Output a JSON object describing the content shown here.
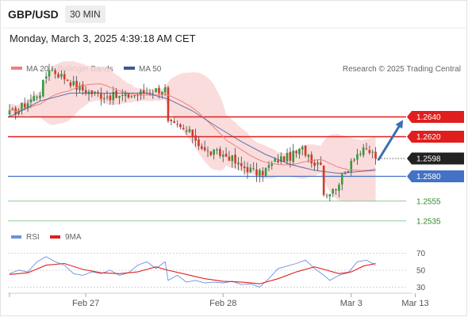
{
  "header": {
    "symbol": "GBP/USD",
    "interval": "30 MIN",
    "datetime": "Monday, March 3, 2025 4:39:18 AM CET"
  },
  "legend": {
    "items": [
      {
        "label": "MA 20 + Bollinger Bands",
        "color": "#f08080"
      },
      {
        "label": "MA 50",
        "color": "#3a5a9a"
      }
    ],
    "rsi_items": [
      {
        "label": "RSI",
        "color": "#6f8fdc"
      },
      {
        "label": "9MA",
        "color": "#e02020"
      }
    ]
  },
  "attribution": "Research © 2025 Trading Central",
  "colors": {
    "up_candle": "#2e9e3e",
    "down_candle": "#d43a2a",
    "resistance": "#e01e1e",
    "pivot": "#4472c4",
    "support": "#8fc98f",
    "current": "#222222",
    "bands": "#f9d6d6",
    "arrow": "#3a6fb0"
  },
  "chart_data": [
    {
      "type": "candlestick",
      "y_range": [
        1.2526,
        1.2678
      ],
      "x_range": [
        0,
        130
      ],
      "x_ticks": [
        {
          "label": "Feb 27",
          "x": 25
        },
        {
          "label": "Feb 28",
          "x": 70
        },
        {
          "label": "Mar 3",
          "x": 112
        },
        {
          "label": "Mar 13",
          "x": 133
        }
      ],
      "levels": [
        {
          "label": "1.2640",
          "value": 1.264,
          "kind": "resistance"
        },
        {
          "label": "1.2620",
          "value": 1.262,
          "kind": "resistance"
        },
        {
          "label": "1.2598",
          "value": 1.2598,
          "kind": "current"
        },
        {
          "label": "1.2580",
          "value": 1.258,
          "kind": "pivot"
        },
        {
          "label": "1.2555",
          "value": 1.2555,
          "kind": "support"
        },
        {
          "label": "1.2535",
          "value": 1.2535,
          "kind": "support"
        }
      ],
      "forecast_arrow": {
        "from": [
          121,
          1.2597
        ],
        "to": [
          129,
          1.2637
        ]
      },
      "anchors_close": [
        [
          0,
          1.2643
        ],
        [
          3,
          1.2648
        ],
        [
          6,
          1.2655
        ],
        [
          10,
          1.2665
        ],
        [
          13,
          1.269
        ],
        [
          16,
          1.2683
        ],
        [
          19,
          1.2678
        ],
        [
          22,
          1.267
        ],
        [
          26,
          1.2665
        ],
        [
          30,
          1.2662
        ],
        [
          36,
          1.266
        ],
        [
          42,
          1.2663
        ],
        [
          47,
          1.2667
        ],
        [
          51,
          1.2668
        ],
        [
          52,
          1.2633
        ],
        [
          56,
          1.2628
        ],
        [
          60,
          1.2622
        ],
        [
          64,
          1.2605
        ],
        [
          68,
          1.2603
        ],
        [
          72,
          1.26
        ],
        [
          75,
          1.2591
        ],
        [
          78,
          1.2588
        ],
        [
          82,
          1.2582
        ],
        [
          85,
          1.259
        ],
        [
          88,
          1.2597
        ],
        [
          92,
          1.26
        ],
        [
          96,
          1.2607
        ],
        [
          98,
          1.2602
        ],
        [
          100,
          1.2593
        ],
        [
          102,
          1.2596
        ],
        [
          103,
          1.2563
        ],
        [
          106,
          1.2565
        ],
        [
          108,
          1.2575
        ],
        [
          110,
          1.2582
        ],
        [
          112,
          1.2597
        ],
        [
          114,
          1.2603
        ],
        [
          117,
          1.2606
        ],
        [
          119,
          1.2603
        ],
        [
          120,
          1.26
        ]
      ],
      "ma50_points": [
        [
          0,
          1.264
        ],
        [
          10,
          1.2656
        ],
        [
          20,
          1.2664
        ],
        [
          30,
          1.2664
        ],
        [
          45,
          1.2664
        ],
        [
          52,
          1.2658
        ],
        [
          60,
          1.2646
        ],
        [
          68,
          1.263
        ],
        [
          76,
          1.2615
        ],
        [
          84,
          1.2602
        ],
        [
          92,
          1.2592
        ],
        [
          100,
          1.2586
        ],
        [
          108,
          1.2583
        ],
        [
          115,
          1.2585
        ],
        [
          120,
          1.2586
        ]
      ]
    },
    {
      "type": "line",
      "title": "RSI",
      "y_range": [
        20,
        80
      ],
      "y_ticks": [
        70,
        50,
        30
      ],
      "series": [
        {
          "name": "RSI",
          "points": [
            [
              0,
              46
            ],
            [
              3,
              50
            ],
            [
              6,
              48
            ],
            [
              9,
              60
            ],
            [
              12,
              66
            ],
            [
              15,
              60
            ],
            [
              18,
              56
            ],
            [
              21,
              46
            ],
            [
              24,
              44
            ],
            [
              27,
              48
            ],
            [
              30,
              46
            ],
            [
              33,
              50
            ],
            [
              36,
              44
            ],
            [
              39,
              47
            ],
            [
              42,
              56
            ],
            [
              45,
              60
            ],
            [
              48,
              52
            ],
            [
              51,
              60
            ],
            [
              52,
              38
            ],
            [
              55,
              44
            ],
            [
              58,
              36
            ],
            [
              61,
              38
            ],
            [
              64,
              35
            ],
            [
              67,
              36
            ],
            [
              70,
              35
            ],
            [
              73,
              37
            ],
            [
              76,
              33
            ],
            [
              79,
              34
            ],
            [
              82,
              30
            ],
            [
              85,
              40
            ],
            [
              88,
              52
            ],
            [
              91,
              55
            ],
            [
              94,
              58
            ],
            [
              97,
              62
            ],
            [
              100,
              52
            ],
            [
              103,
              44
            ],
            [
              105,
              38
            ],
            [
              108,
              44
            ],
            [
              111,
              47
            ],
            [
              114,
              60
            ],
            [
              117,
              62
            ],
            [
              120,
              56
            ]
          ]
        },
        {
          "name": "9MA",
          "points": [
            [
              0,
              45
            ],
            [
              6,
              47
            ],
            [
              12,
              56
            ],
            [
              18,
              58
            ],
            [
              24,
              51
            ],
            [
              30,
              47
            ],
            [
              36,
              46
            ],
            [
              42,
              48
            ],
            [
              48,
              54
            ],
            [
              52,
              50
            ],
            [
              58,
              45
            ],
            [
              64,
              40
            ],
            [
              70,
              37
            ],
            [
              76,
              36
            ],
            [
              82,
              34
            ],
            [
              88,
              40
            ],
            [
              94,
              48
            ],
            [
              100,
              54
            ],
            [
              103,
              51
            ],
            [
              108,
              46
            ],
            [
              112,
              48
            ],
            [
              116,
              55
            ],
            [
              120,
              58
            ]
          ]
        }
      ]
    }
  ]
}
